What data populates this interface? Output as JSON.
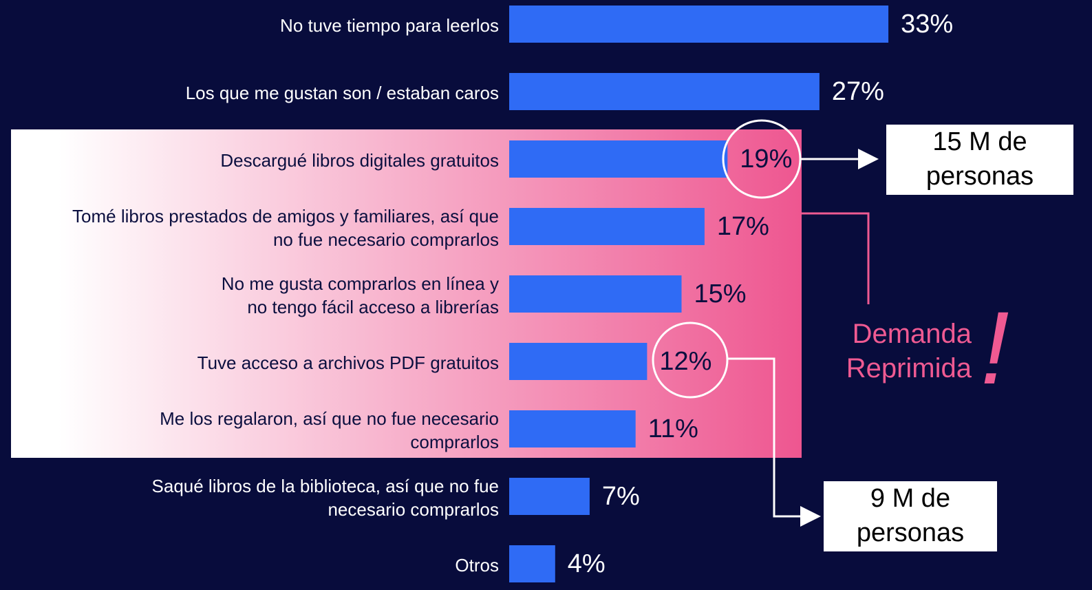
{
  "chart_data": {
    "type": "bar",
    "orientation": "horizontal",
    "categories": [
      "No tuve tiempo para leerlos",
      "Los que me gustan son / estaban caros",
      "Descargué libros digitales gratuitos",
      "Tomé libros prestados de amigos y familiares, así que\nno fue necesario comprarlos",
      "No me gusta comprarlos en línea y\nno tengo fácil acceso a librerías",
      "Tuve acceso a archivos PDF gratuitos",
      "Me los regalaron, así que no fue necesario\ncomprarlos",
      "Saqué libros de la biblioteca, así que no fue\nnecesario comprarlos",
      "Otros"
    ],
    "values": [
      33,
      27,
      19,
      17,
      15,
      12,
      11,
      7,
      4
    ],
    "value_labels": [
      "33%",
      "27%",
      "19%",
      "17%",
      "15%",
      "12%",
      "11%",
      "7%",
      "4%"
    ],
    "color": "#2f6bf5",
    "annotations": [
      "15 M de\npersonas",
      "9 M de\npersonas",
      "Demanda\nReprimida",
      "!"
    ]
  }
}
